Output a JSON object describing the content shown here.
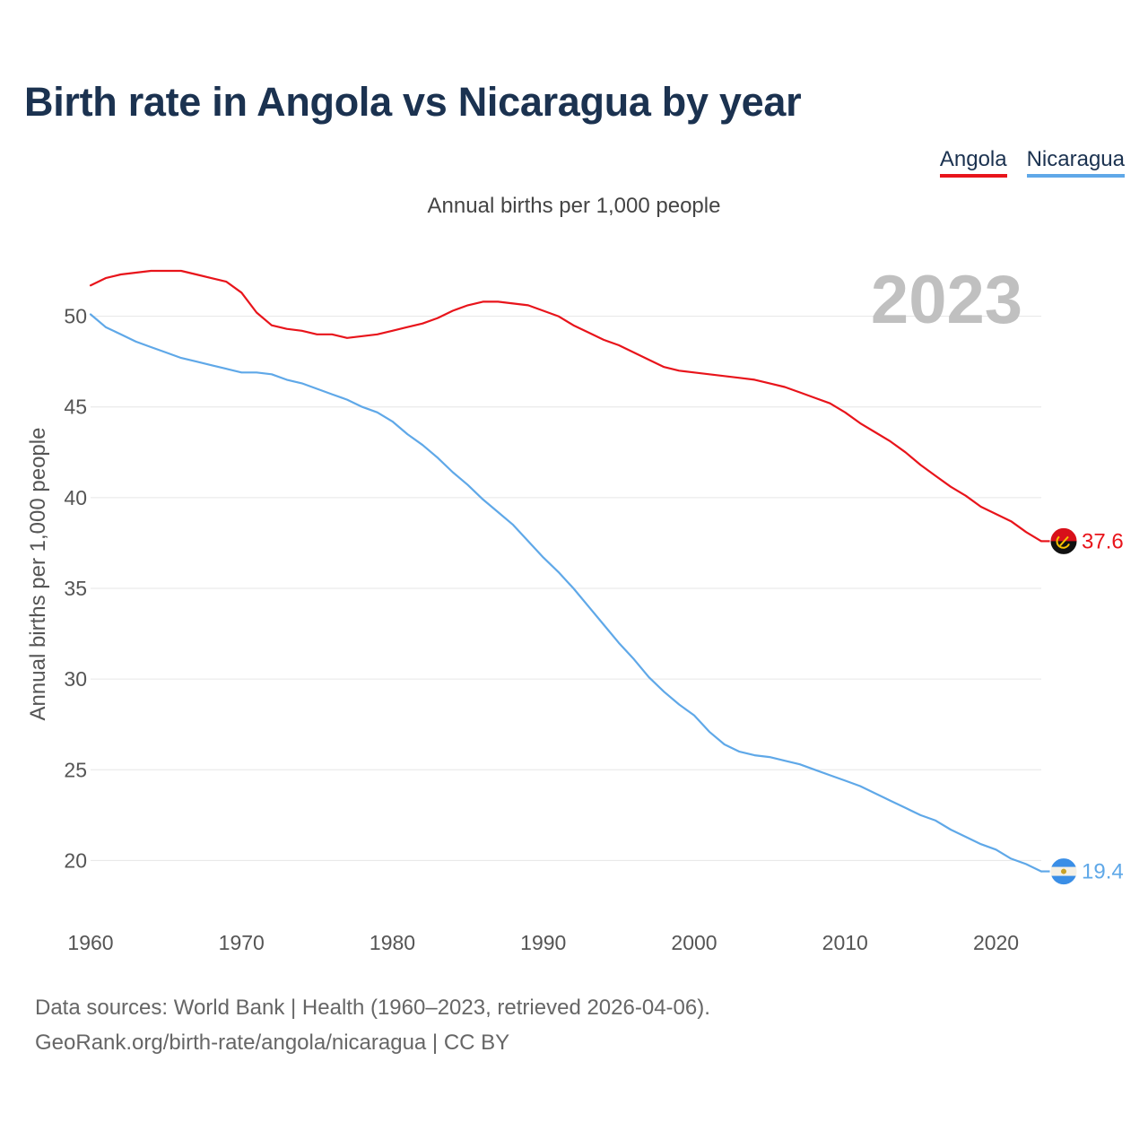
{
  "title": "Birth rate in Angola vs Nicaragua by year",
  "subtitle": "Annual births per 1,000 people",
  "year_overlay": "2023",
  "footer": {
    "sources": "Data sources: World Bank | Health (1960–2023, retrieved 2026-04-06).",
    "credit": "GeoRank.org/birth-rate/angola/nicaragua | CC BY"
  },
  "colors": {
    "angola": "#e8141b",
    "nicaragua": "#5fa8e8",
    "title": "#1b3250",
    "grid": "#e6e6e6",
    "tick": "#555555",
    "overlay": "#c0c0c0"
  },
  "chart_data": {
    "type": "line",
    "title": "Birth rate in Angola vs Nicaragua by year",
    "ylabel": "Annual births per 1,000 people",
    "xlabel": "",
    "xlim": [
      1960,
      2023
    ],
    "ylim": [
      17.5,
      52.5
    ],
    "xticks": [
      1960,
      1970,
      1980,
      1990,
      2000,
      2010,
      2020
    ],
    "yticks": [
      20,
      25,
      30,
      35,
      40,
      45,
      50
    ],
    "grid": true,
    "legend_position": "top-right",
    "x": [
      1960,
      1961,
      1962,
      1963,
      1964,
      1965,
      1966,
      1967,
      1968,
      1969,
      1970,
      1971,
      1972,
      1973,
      1974,
      1975,
      1976,
      1977,
      1978,
      1979,
      1980,
      1981,
      1982,
      1983,
      1984,
      1985,
      1986,
      1987,
      1988,
      1989,
      1990,
      1991,
      1992,
      1993,
      1994,
      1995,
      1996,
      1997,
      1998,
      1999,
      2000,
      2001,
      2002,
      2003,
      2004,
      2005,
      2006,
      2007,
      2008,
      2009,
      2010,
      2011,
      2012,
      2013,
      2014,
      2015,
      2016,
      2017,
      2018,
      2019,
      2020,
      2021,
      2022,
      2023
    ],
    "series": [
      {
        "name": "Angola",
        "color": "#e8141b",
        "end_label": "37.6",
        "values": [
          51.7,
          52.1,
          52.3,
          52.4,
          52.5,
          52.5,
          52.5,
          52.3,
          52.1,
          51.9,
          51.3,
          50.2,
          49.5,
          49.3,
          49.2,
          49.0,
          49.0,
          48.8,
          48.9,
          49.0,
          49.2,
          49.4,
          49.6,
          49.9,
          50.3,
          50.6,
          50.8,
          50.8,
          50.7,
          50.6,
          50.3,
          50.0,
          49.5,
          49.1,
          48.7,
          48.4,
          48.0,
          47.6,
          47.2,
          47.0,
          46.9,
          46.8,
          46.7,
          46.6,
          46.5,
          46.3,
          46.1,
          45.8,
          45.5,
          45.2,
          44.7,
          44.1,
          43.6,
          43.1,
          42.5,
          41.8,
          41.2,
          40.6,
          40.1,
          39.5,
          39.1,
          38.7,
          38.1,
          37.6
        ]
      },
      {
        "name": "Nicaragua",
        "color": "#5fa8e8",
        "end_label": "19.4",
        "values": [
          50.1,
          49.4,
          49.0,
          48.6,
          48.3,
          48.0,
          47.7,
          47.5,
          47.3,
          47.1,
          46.9,
          46.9,
          46.8,
          46.5,
          46.3,
          46.0,
          45.7,
          45.4,
          45.0,
          44.7,
          44.2,
          43.5,
          42.9,
          42.2,
          41.4,
          40.7,
          39.9,
          39.2,
          38.5,
          37.6,
          36.7,
          35.9,
          35.0,
          34.0,
          33.0,
          32.0,
          31.1,
          30.1,
          29.3,
          28.6,
          28.0,
          27.1,
          26.4,
          26.0,
          25.8,
          25.7,
          25.5,
          25.3,
          25.0,
          24.7,
          24.4,
          24.1,
          23.7,
          23.3,
          22.9,
          22.5,
          22.2,
          21.7,
          21.3,
          20.9,
          20.6,
          20.1,
          19.8,
          19.4
        ]
      }
    ]
  }
}
